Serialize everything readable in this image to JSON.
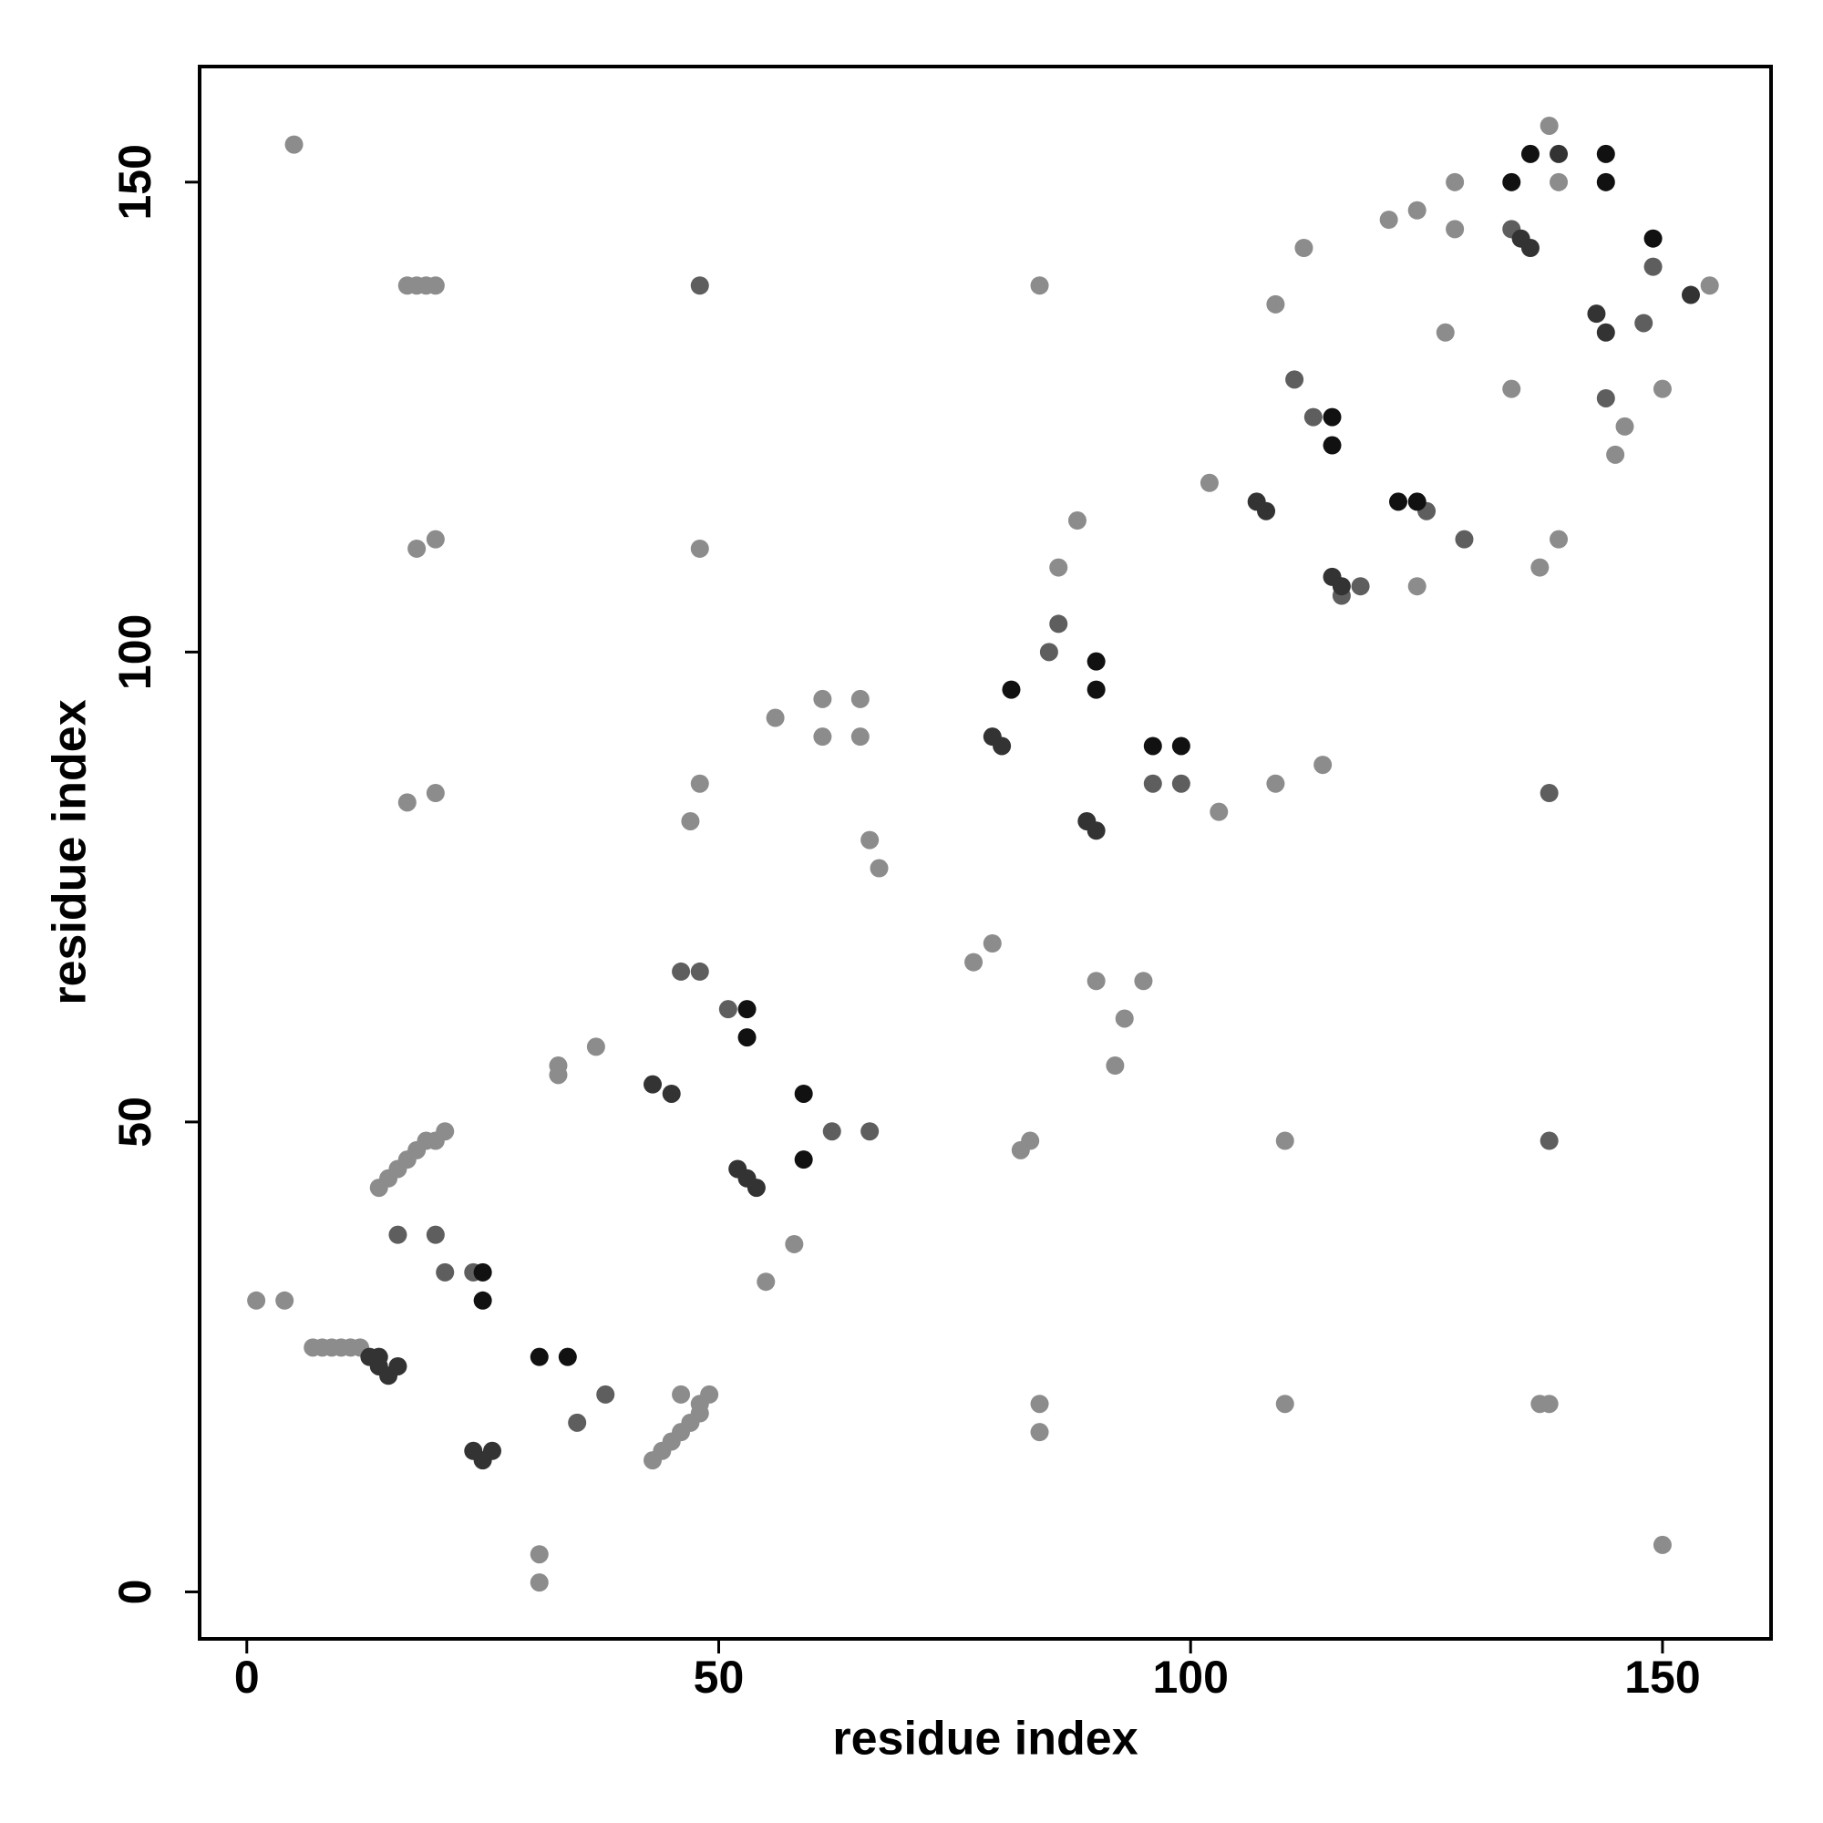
{
  "chart_data": {
    "type": "scatter",
    "x_label": "residue index",
    "y_label": "residue index",
    "xlim": [
      -5,
      161.5
    ],
    "ylim": [
      -5,
      162.3
    ],
    "xticks": [
      0,
      50,
      100,
      150
    ],
    "yticks": [
      0,
      50,
      100,
      150
    ],
    "series": [
      {
        "color": "#8c8c8c",
        "x": [
          5,
          1,
          4,
          7,
          8,
          9,
          10,
          11,
          12,
          17,
          18,
          19,
          20,
          18,
          20,
          17,
          20,
          14,
          15,
          16,
          17,
          18,
          19,
          20,
          21,
          31,
          31,
          33,
          33,
          37,
          43,
          44,
          45,
          46,
          47,
          48,
          49,
          48,
          46,
          48,
          47,
          48,
          56,
          61,
          65,
          61,
          65,
          66,
          67,
          55,
          58,
          77,
          79,
          82,
          83,
          84,
          84,
          84,
          86,
          88,
          90,
          92,
          93,
          95,
          103,
          109,
          102,
          110,
          110,
          114,
          109,
          112,
          121,
          124,
          128,
          128,
          127,
          137,
          138,
          139,
          137,
          134,
          150,
          145,
          146,
          150,
          155,
          138,
          139,
          124
        ],
        "y": [
          154,
          31,
          31,
          26,
          26,
          26,
          26,
          26,
          26,
          139,
          139,
          139,
          139,
          111,
          112,
          84,
          85,
          43,
          44,
          45,
          46,
          47,
          48,
          48,
          49,
          4,
          1,
          56,
          55,
          58,
          14,
          15,
          16,
          17,
          18,
          19,
          21,
          20,
          21,
          111,
          82,
          86,
          93,
          95,
          95,
          91,
          91,
          80,
          77,
          33,
          37,
          67,
          69,
          47,
          48,
          20,
          17,
          139,
          109,
          114,
          65,
          56,
          61,
          65,
          83,
          86,
          118,
          48,
          20,
          88,
          137,
          143,
          146,
          147,
          150,
          145,
          134,
          20,
          20,
          112,
          109,
          128,
          128,
          121,
          124,
          5,
          139,
          156,
          150,
          107
        ]
      },
      {
        "color": "#5e5e5e",
        "x": [
          48,
          138,
          138,
          16,
          20,
          21,
          24,
          38,
          35,
          46,
          48,
          51,
          62,
          66,
          85,
          86,
          96,
          99,
          113,
          111,
          125,
          129,
          148,
          149,
          144,
          116,
          118,
          134
        ],
        "y": [
          139,
          48,
          85,
          38,
          38,
          34,
          34,
          21,
          18,
          66,
          66,
          62,
          49,
          49,
          100,
          103,
          86,
          86,
          125,
          129,
          115,
          112,
          135,
          141,
          127,
          106,
          107,
          145
        ]
      },
      {
        "color": "#333333",
        "x": [
          13,
          14,
          14,
          15,
          16,
          24,
          25,
          26,
          43,
          45,
          52,
          53,
          54,
          79,
          80,
          89,
          90,
          107,
          108,
          115,
          116,
          135,
          136,
          143,
          144,
          153,
          139
        ],
        "y": [
          25,
          25,
          24,
          23,
          24,
          15,
          14,
          15,
          54,
          53,
          45,
          44,
          43,
          91,
          90,
          82,
          81,
          116,
          115,
          108,
          107,
          144,
          143,
          136,
          134,
          138,
          153
        ]
      },
      {
        "color": "#111111",
        "x": [
          25,
          25,
          31,
          34,
          53,
          53,
          59,
          59,
          81,
          90,
          90,
          96,
          99,
          115,
          115,
          122,
          124,
          144,
          144,
          149,
          134,
          136
        ],
        "y": [
          31,
          34,
          25,
          25,
          59,
          62,
          53,
          46,
          96,
          96,
          99,
          90,
          90,
          125,
          122,
          116,
          116,
          153,
          150,
          144,
          150,
          153
        ]
      }
    ]
  }
}
